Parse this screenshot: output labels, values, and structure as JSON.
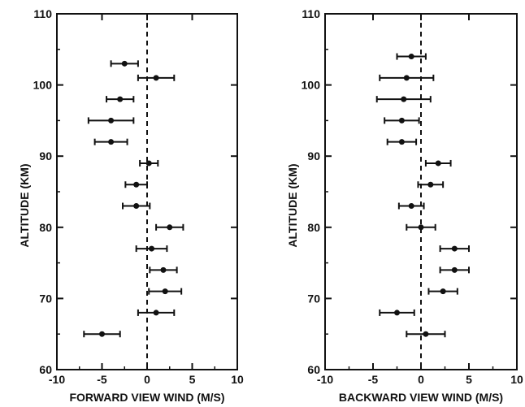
{
  "chart_data": [
    {
      "type": "scatter",
      "title": "",
      "xlabel": "FORWARD VIEW WIND (M/S)",
      "ylabel": "ALTITUDE (KM)",
      "xlim": [
        -10,
        10
      ],
      "ylim": [
        60,
        110
      ],
      "xticks": [
        "-10",
        "-5",
        "0",
        "5",
        "10"
      ],
      "yticks": [
        "60",
        "70",
        "80",
        "90",
        "100",
        "110"
      ],
      "zero_line": "dashed",
      "points": [
        {
          "alt": 103,
          "wind": -2.5,
          "err": 1.5
        },
        {
          "alt": 101,
          "wind": 1.0,
          "err": 2.0
        },
        {
          "alt": 98,
          "wind": -3.0,
          "err": 1.5
        },
        {
          "alt": 95,
          "wind": -4.0,
          "err": 2.5
        },
        {
          "alt": 92,
          "wind": -4.0,
          "err": 1.8
        },
        {
          "alt": 89,
          "wind": 0.2,
          "err": 1.0
        },
        {
          "alt": 86,
          "wind": -1.2,
          "err": 1.2
        },
        {
          "alt": 83,
          "wind": -1.2,
          "err": 1.5
        },
        {
          "alt": 80,
          "wind": 2.5,
          "err": 1.5
        },
        {
          "alt": 77,
          "wind": 0.5,
          "err": 1.7
        },
        {
          "alt": 74,
          "wind": 1.8,
          "err": 1.5
        },
        {
          "alt": 71,
          "wind": 2.0,
          "err": 1.8
        },
        {
          "alt": 68,
          "wind": 1.0,
          "err": 2.0
        },
        {
          "alt": 65,
          "wind": -5.0,
          "err": 2.0
        }
      ]
    },
    {
      "type": "scatter",
      "title": "",
      "xlabel": "BACKWARD VIEW WIND (M/S)",
      "ylabel": "ALTITUDE (KM)",
      "xlim": [
        -10,
        10
      ],
      "ylim": [
        60,
        110
      ],
      "xticks": [
        "-10",
        "-5",
        "0",
        "5",
        "10"
      ],
      "yticks": [
        "60",
        "70",
        "80",
        "90",
        "100",
        "110"
      ],
      "zero_line": "dashed",
      "points": [
        {
          "alt": 104,
          "wind": -1.0,
          "err": 1.5
        },
        {
          "alt": 101,
          "wind": -1.5,
          "err": 2.8
        },
        {
          "alt": 98,
          "wind": -1.8,
          "err": 2.8
        },
        {
          "alt": 95,
          "wind": -2.0,
          "err": 1.8
        },
        {
          "alt": 92,
          "wind": -2.0,
          "err": 1.5
        },
        {
          "alt": 89,
          "wind": 1.8,
          "err": 1.3
        },
        {
          "alt": 86,
          "wind": 1.0,
          "err": 1.3
        },
        {
          "alt": 83,
          "wind": -1.0,
          "err": 1.3
        },
        {
          "alt": 80,
          "wind": 0.0,
          "err": 1.5
        },
        {
          "alt": 77,
          "wind": 3.5,
          "err": 1.5
        },
        {
          "alt": 74,
          "wind": 3.5,
          "err": 1.5
        },
        {
          "alt": 71,
          "wind": 2.3,
          "err": 1.5
        },
        {
          "alt": 68,
          "wind": -2.5,
          "err": 1.8
        },
        {
          "alt": 65,
          "wind": 0.5,
          "err": 2.0
        }
      ]
    }
  ]
}
